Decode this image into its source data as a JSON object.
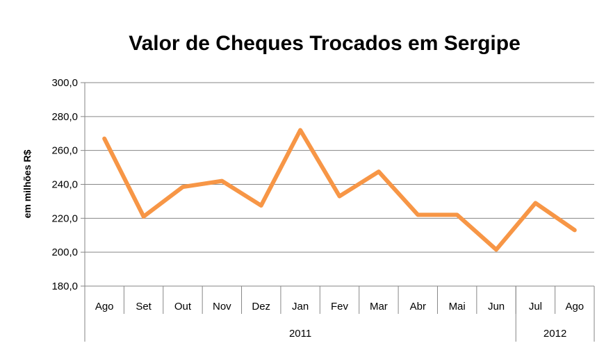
{
  "chart_data": {
    "type": "line",
    "title": "Valor de Cheques Trocados em Sergipe",
    "ylabel": "em milhões R$",
    "ylim": [
      180,
      300
    ],
    "yticks": [
      "180,0",
      "200,0",
      "220,0",
      "240,0",
      "260,0",
      "280,0",
      "300,0"
    ],
    "categories": [
      "Ago",
      "Set",
      "Out",
      "Nov",
      "Dez",
      "Jan",
      "Fev",
      "Mar",
      "Abr",
      "Mai",
      "Jun",
      "Jul",
      "Ago"
    ],
    "year_groups": [
      {
        "label": "2011",
        "count": 11
      },
      {
        "label": "2012",
        "count": 2
      }
    ],
    "series": [
      {
        "values": [
          267,
          221,
          238.5,
          242,
          227.5,
          272,
          233,
          247.5,
          222,
          222,
          201.5,
          229,
          213
        ]
      }
    ],
    "line_color": "#F79646",
    "gridlines": true,
    "legend": "none"
  }
}
